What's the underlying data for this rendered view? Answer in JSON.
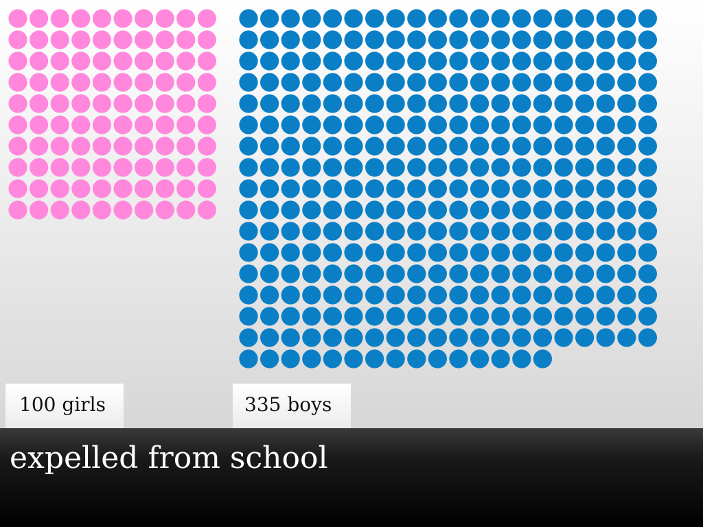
{
  "chart_data": {
    "type": "pictograph",
    "title": "expelled from school",
    "series": [
      {
        "label": "100 girls",
        "value": 100,
        "color": "#ff88dd"
      },
      {
        "label": "335 boys",
        "value": 335,
        "color": "#0a7fc6"
      }
    ]
  }
}
